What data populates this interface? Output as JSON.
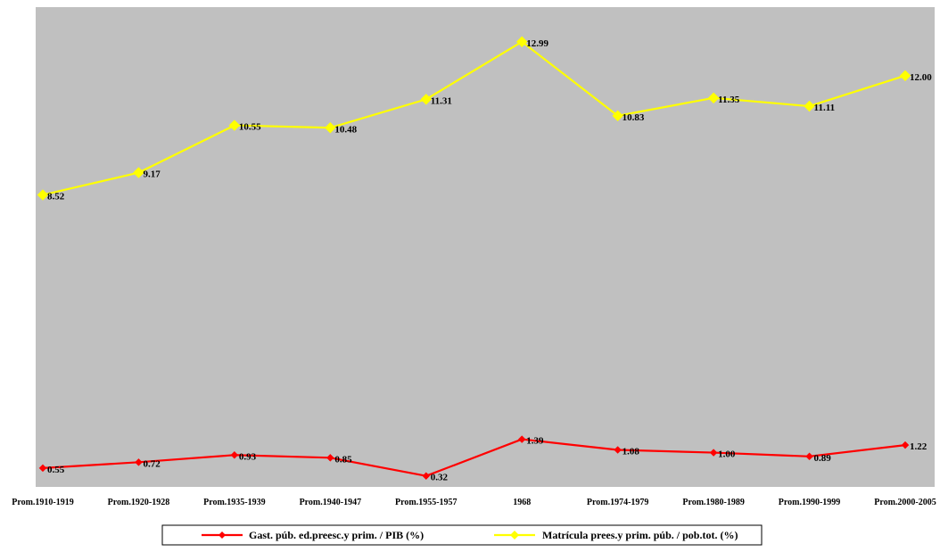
{
  "chart_data": {
    "type": "line",
    "categories": [
      "Prom.1910-1919",
      "Prom.1920-1928",
      "Prom.1935-1939",
      "Prom.1940-1947",
      "Prom.1955-1957",
      "1968",
      "Prom.1974-1979",
      "Prom.1980-1989",
      "Prom.1990-1999",
      "Prom.2000-2005"
    ],
    "series": [
      {
        "name": "Gast. púb. ed.preesc.y prim. / PIB (%)",
        "values": [
          0.55,
          0.72,
          0.93,
          0.85,
          0.32,
          1.39,
          1.08,
          1.0,
          0.89,
          1.22
        ],
        "labels": [
          "0.55",
          "0.72",
          "0.93",
          "0.85",
          "0.32",
          "1.39",
          "1.08",
          "1.00",
          "0.89",
          "1.22"
        ],
        "color": "#ff0000",
        "marker": "diamond"
      },
      {
        "name": "Matrícula prees.y prim. púb. / pob.tot. (%)",
        "values": [
          8.52,
          9.17,
          10.55,
          10.48,
          11.31,
          12.99,
          10.83,
          11.35,
          11.11,
          12.0
        ],
        "labels": [
          "8.52",
          "9.17",
          "10.55",
          "10.48",
          "11.31",
          "12.99",
          "10.83",
          "11.35",
          "11.11",
          "12.00"
        ],
        "color": "#ffff00",
        "marker": "diamond"
      }
    ],
    "title": "",
    "xlabel": "",
    "ylabel": "",
    "ylim": [
      0,
      14
    ],
    "grid": false,
    "y_axis_visible": false,
    "legend": "bottom-center",
    "plot_background": "#c0c0c0"
  }
}
